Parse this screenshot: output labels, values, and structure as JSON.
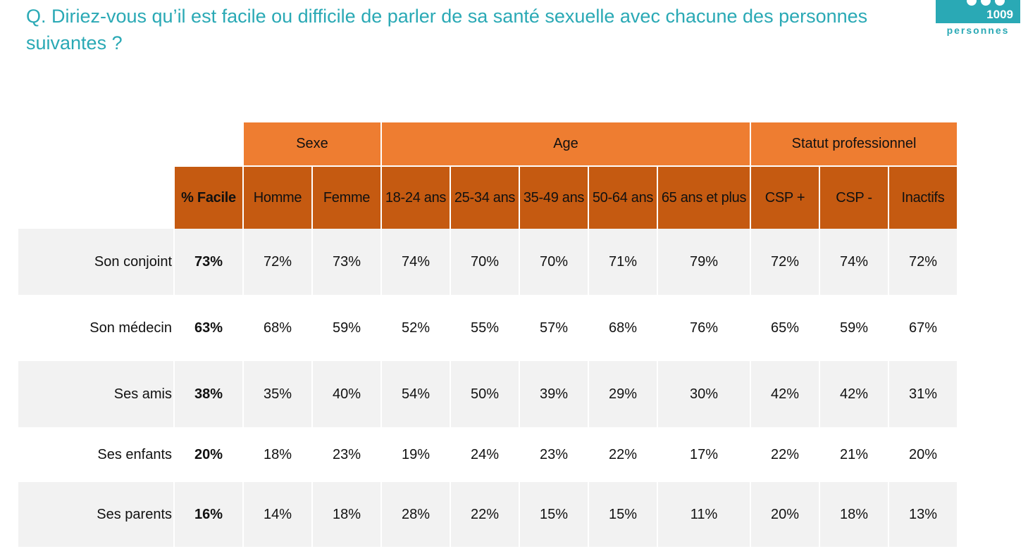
{
  "question": "Q. Diriez-vous qu’il est facile ou difficile de parler de sa santé sexuelle avec chacune des personnes suivantes ?",
  "badge": {
    "count": "1009",
    "label": "personnes",
    "color": "#2aa9b5"
  },
  "colors": {
    "group_header": "#ee7d31",
    "column_header": "#c55a11",
    "row_shade": "#f2f2f2",
    "title": "#2aa9b5"
  },
  "chart_data": {
    "type": "table",
    "groups": [
      {
        "label": "Sexe",
        "span": 2
      },
      {
        "label": "Age",
        "span": 5
      },
      {
        "label": "Statut professionnel",
        "span": 3
      }
    ],
    "total_label": "% Facile",
    "columns": [
      "Homme",
      "Femme",
      "18-24 ans",
      "25-34 ans",
      "35-49 ans",
      "50-64 ans",
      "65 ans et plus",
      "CSP +",
      "CSP -",
      "Inactifs"
    ],
    "rows": [
      {
        "label": "Son conjoint",
        "total": "73%",
        "values": [
          "72%",
          "73%",
          "74%",
          "70%",
          "70%",
          "71%",
          "79%",
          "72%",
          "74%",
          "72%"
        ]
      },
      {
        "label": "Son médecin",
        "total": "63%",
        "values": [
          "68%",
          "59%",
          "52%",
          "55%",
          "57%",
          "68%",
          "76%",
          "65%",
          "59%",
          "67%"
        ]
      },
      {
        "label": "Ses amis",
        "total": "38%",
        "values": [
          "35%",
          "40%",
          "54%",
          "50%",
          "39%",
          "29%",
          "30%",
          "42%",
          "42%",
          "31%"
        ]
      },
      {
        "label": "Ses enfants",
        "total": "20%",
        "values": [
          "18%",
          "23%",
          "19%",
          "24%",
          "23%",
          "22%",
          "17%",
          "22%",
          "21%",
          "20%"
        ]
      },
      {
        "label": "Ses parents",
        "total": "16%",
        "values": [
          "14%",
          "18%",
          "28%",
          "22%",
          "15%",
          "15%",
          "11%",
          "20%",
          "18%",
          "13%"
        ]
      }
    ]
  }
}
